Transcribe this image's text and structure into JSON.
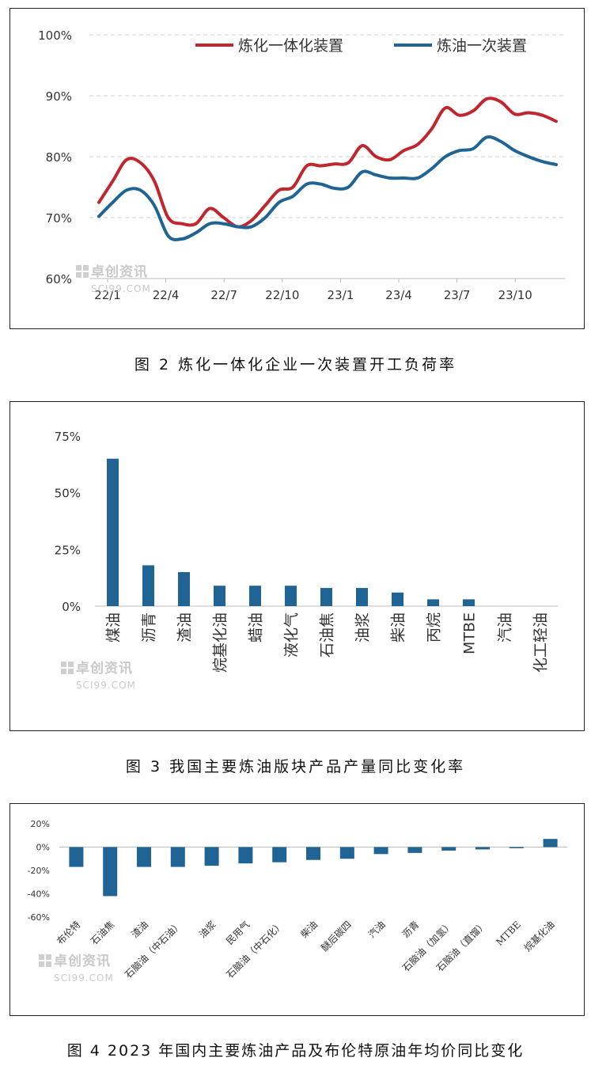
{
  "watermark": {
    "cn": "卓创资讯",
    "en": "SCI99.COM"
  },
  "figures": [
    {
      "caption": "图 2  炼化一体化企业一次装置开工负荷率"
    },
    {
      "caption": "图 3  我国主要炼油版块产品产量同比变化率"
    },
    {
      "caption": "图 4  2023 年国内主要炼油产品及布伦特原油年均价同比变化"
    }
  ],
  "chart_data": [
    {
      "type": "line",
      "title": "",
      "y_ticks": [
        "60%",
        "70%",
        "80%",
        "90%",
        "100%"
      ],
      "ylim": [
        60,
        100
      ],
      "x_ticks": [
        "22/1",
        "22/4",
        "22/7",
        "22/10",
        "23/1",
        "23/4",
        "23/7",
        "23/10"
      ],
      "grid": "horizontal-dashed",
      "legend": "top",
      "series": [
        {
          "name": "炼化一体化装置",
          "color": "#c0262d",
          "values": [
            72.5,
            76,
            79.5,
            79,
            76,
            70,
            69,
            69,
            71.5,
            70,
            68.5,
            69.5,
            72,
            74.5,
            75,
            78.5,
            78.5,
            78.8,
            79,
            81.8,
            80,
            79.5,
            81,
            82,
            84.5,
            88,
            86.8,
            87.5,
            89.5,
            89,
            87,
            87.2,
            86.8,
            85.8
          ]
        },
        {
          "name": "炼油一次装置",
          "color": "#1f6494",
          "values": [
            70.2,
            72.5,
            74.5,
            74.5,
            72,
            67,
            66.5,
            67.5,
            69,
            69,
            68.5,
            68.5,
            70,
            72.5,
            73.5,
            75.5,
            75.5,
            74.8,
            75,
            77.5,
            77,
            76.5,
            76.5,
            76.5,
            78,
            80,
            81,
            81.3,
            83.2,
            82.5,
            81,
            80,
            79.2,
            78.7
          ]
        }
      ]
    },
    {
      "type": "bar",
      "title": "",
      "categories": [
        "煤油",
        "沥青",
        "渣油",
        "烷基化油",
        "蜡油",
        "液化气",
        "石油焦",
        "油浆",
        "柴油",
        "丙烷",
        "MTBE",
        "汽油",
        "化工轻油"
      ],
      "values": [
        65,
        18,
        15,
        9,
        9,
        9,
        8,
        8,
        6,
        3,
        3,
        0,
        0
      ],
      "y_ticks": [
        "0%",
        "25%",
        "50%",
        "75%"
      ],
      "ylim": [
        0,
        75
      ],
      "color": "#1f6494"
    },
    {
      "type": "bar",
      "title": "",
      "categories": [
        "布伦特",
        "石油焦",
        "渣油",
        "石脑油（中石油）",
        "油浆",
        "民用气",
        "石脑油（中石化）",
        "柴油",
        "醚后碳四",
        "汽油",
        "沥青",
        "石脑油（加氢）",
        "石脑油（直馏）",
        "MTBE",
        "烷基化油"
      ],
      "values": [
        -17,
        -42,
        -17,
        -17,
        -16,
        -14,
        -13,
        -11,
        -10,
        -6,
        -5,
        -3,
        -2,
        -1,
        7
      ],
      "y_ticks": [
        "-60%",
        "-40%",
        "-20%",
        "0%",
        "20%"
      ],
      "ylim": [
        -60,
        20
      ],
      "color": "#1f6494"
    }
  ]
}
